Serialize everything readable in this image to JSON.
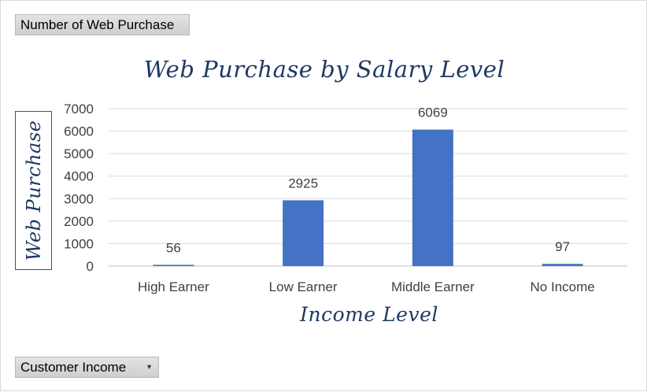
{
  "pivot": {
    "values_button": "Number of Web Purchase",
    "field_button": "Customer Income"
  },
  "colors": {
    "bar": "#4472c4",
    "title": "#1f3864",
    "gridline": "#d9d9d9"
  },
  "chart_data": {
    "type": "bar",
    "title": "Web Purchase by Salary Level",
    "xlabel": "Income Level",
    "ylabel": "Web Purchase",
    "categories": [
      "High Earner",
      "Low Earner",
      "Middle Earner",
      "No Income"
    ],
    "values": [
      56,
      2925,
      6069,
      97
    ],
    "data_labels": [
      "56",
      "2925",
      "6069",
      "97"
    ],
    "ylim": [
      0,
      7000
    ],
    "yticks": [
      "0",
      "1000",
      "2000",
      "3000",
      "4000",
      "5000",
      "6000",
      "7000"
    ],
    "grid": true,
    "legend": "none"
  }
}
